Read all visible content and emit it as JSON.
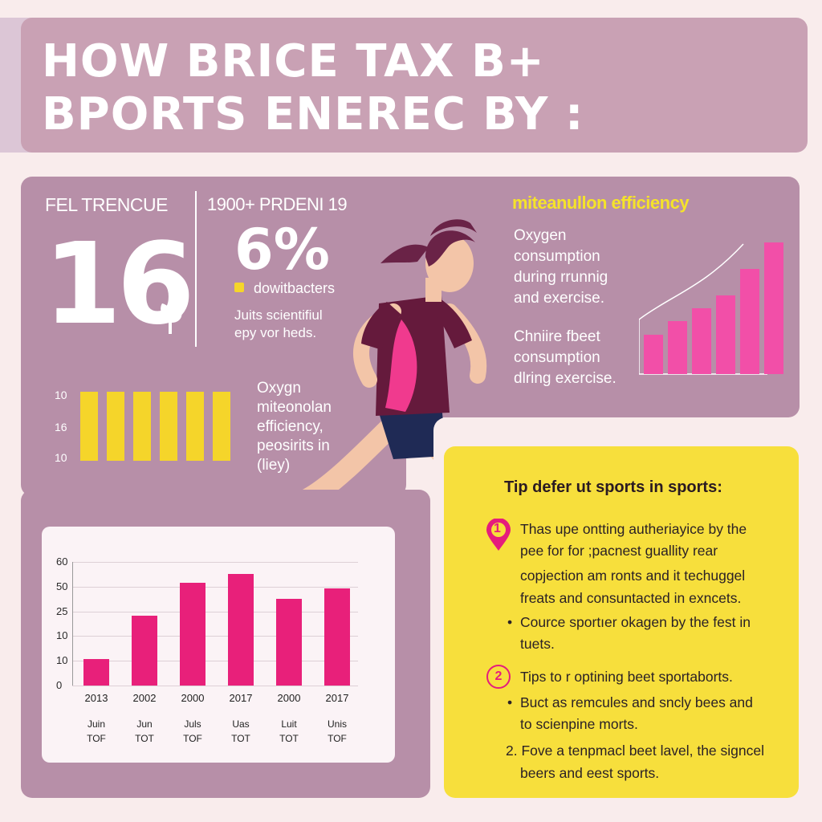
{
  "title": {
    "line1": "HOW BRICE TAX B+",
    "line2": "BPORTS ENEREC BY :"
  },
  "left_stats": {
    "label": "FEL TRENCUE",
    "big_number": "16",
    "sep_label": "1900+ PRDENI 19",
    "percent": "6%",
    "legend_label": "dowitbacters",
    "note": [
      "Juits scientifiul",
      "epy vor heds."
    ]
  },
  "yellow_bars": {
    "ticks": [
      "10",
      "16",
      "10"
    ],
    "values": [
      1,
      1,
      1,
      1,
      1,
      1
    ]
  },
  "yellow_note": [
    "Oxygn",
    "miteonolan",
    "efficiency,",
    "peosirits in",
    "(liey)"
  ],
  "efficiency": {
    "heading": "miteanullon efficiency",
    "text1": [
      "Oxygen",
      "consumption",
      "during rrunnig",
      "and exercise."
    ],
    "text2": [
      "Chniire fbeet",
      "consumption",
      "dlring exercise."
    ],
    "bar_values": [
      3,
      4,
      5,
      6,
      8,
      10
    ]
  },
  "bar_chart": {
    "type": "bar",
    "yticks": [
      "60",
      "50",
      "25",
      "10",
      "10",
      "0"
    ],
    "categories": [
      "2013",
      "2002",
      "2000",
      "2017",
      "2000",
      "2017"
    ],
    "sublabels": [
      [
        "Juin",
        "TOF"
      ],
      [
        "Jun",
        "TOT"
      ],
      [
        "Juls",
        "TOF"
      ],
      [
        "Uas",
        "TOT"
      ],
      [
        "Luit",
        "TOT"
      ],
      [
        "Unis",
        "TOF"
      ]
    ],
    "values": [
      13,
      34,
      50,
      54,
      42,
      47
    ],
    "ylim": [
      0,
      60
    ]
  },
  "tips": {
    "heading": "Tip defer ut sports in sports:",
    "badge1": "1",
    "item1": [
      "Thas upe ontting autheriayice by the",
      "pee for for ;pacnest guallity rear",
      "copjection am ronts and it techuggel",
      "freats and consuntacted in exncets."
    ],
    "bullet1": [
      "Cource sportıer okagen by the fest in",
      "tuets."
    ],
    "badge2": "2",
    "item2": "Tips to r optining beet sportaborts.",
    "bullet2": [
      "Buct as remcules and sncly bees and",
      "to scienpine morts."
    ],
    "item3": [
      "2. Fove a tenpmacl beet lavel, the signcel",
      "beers and eest sports."
    ]
  },
  "colors": {
    "accent_pink": "#e8207a",
    "accent_yellow": "#f5d52a",
    "panel": "#b78fa8"
  },
  "icons": [
    "map-pin-icon",
    "leaf-icon",
    "runner-illustration"
  ]
}
